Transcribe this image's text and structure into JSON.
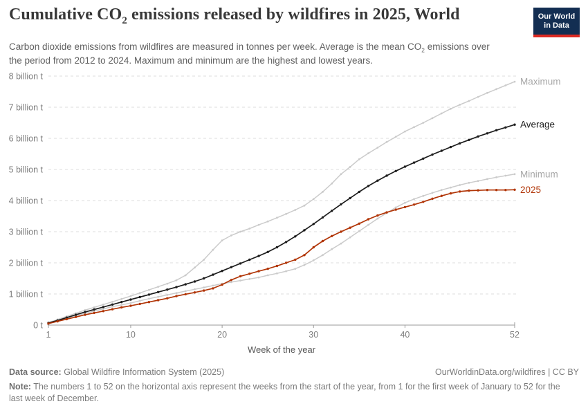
{
  "header": {
    "title_pre": "Cumulative CO",
    "title_sub": "2",
    "title_post": " emissions released by wildfires in 2025, World",
    "subtitle_pre": "Carbon dioxide emissions from wildfires are measured in tonnes per week. Average is the mean CO",
    "subtitle_sub": "2",
    "subtitle_post": " emissions over the period from 2012 to 2024. Maximum and minimum are the highest and lowest years.",
    "logo_line1": "Our World",
    "logo_line2": "in Data"
  },
  "colors": {
    "accent_red": "#b13507",
    "line_gray": "#cbcbcb",
    "series_label_gray": "#a7a7a7",
    "average_black": "#1d1d1d",
    "grid": "#dedede",
    "axis": "#9a9a9a",
    "tick_label": "#7d7d7d",
    "axis_title": "#565656",
    "logo_bg": "#132e52",
    "logo_stripe": "#dc2a23"
  },
  "chart_data": {
    "type": "line",
    "title": "Cumulative CO₂ emissions released by wildfires in 2025, World",
    "subtitle": "Carbon dioxide emissions from wildfires are measured in tonnes per week. Average is the mean CO₂ emissions over the period from 2012 to 2024. Maximum and minimum are the highest and lowest years.",
    "xlabel": "Week of the year",
    "ylabel": "",
    "unit": "billion tonnes",
    "xlim": [
      1,
      52
    ],
    "ylim": [
      0,
      8
    ],
    "grid": "dashed horizontal",
    "legend_position": "right-end-labels",
    "x_ticks": [
      1,
      10,
      20,
      30,
      40,
      52
    ],
    "y_tick_values": [
      0,
      1,
      2,
      3,
      4,
      5,
      6,
      7,
      8
    ],
    "y_tick_labels": [
      "0 t",
      "1 billion t",
      "2 billion t",
      "3 billion t",
      "4 billion t",
      "5 billion t",
      "6 billion t",
      "7 billion t",
      "8 billion t"
    ],
    "x": [
      1,
      2,
      3,
      4,
      5,
      6,
      7,
      8,
      9,
      10,
      11,
      12,
      13,
      14,
      15,
      16,
      17,
      18,
      19,
      20,
      21,
      22,
      23,
      24,
      25,
      26,
      27,
      28,
      29,
      30,
      31,
      32,
      33,
      34,
      35,
      36,
      37,
      38,
      39,
      40,
      41,
      42,
      43,
      44,
      45,
      46,
      47,
      48,
      49,
      50,
      51,
      52
    ],
    "series": [
      {
        "name": "Maximum",
        "color": "#cbcbcb",
        "label_color": "#a7a7a7",
        "line_width": 1.5,
        "values": [
          0.08,
          0.18,
          0.28,
          0.38,
          0.48,
          0.57,
          0.66,
          0.75,
          0.84,
          0.93,
          1.03,
          1.13,
          1.23,
          1.33,
          1.44,
          1.6,
          1.85,
          2.1,
          2.42,
          2.72,
          2.88,
          3.0,
          3.1,
          3.22,
          3.33,
          3.45,
          3.57,
          3.7,
          3.84,
          4.05,
          4.28,
          4.55,
          4.85,
          5.08,
          5.33,
          5.52,
          5.7,
          5.88,
          6.05,
          6.22,
          6.36,
          6.5,
          6.65,
          6.8,
          6.95,
          7.08,
          7.2,
          7.33,
          7.46,
          7.58,
          7.7,
          7.82
        ]
      },
      {
        "name": "Minimum",
        "color": "#cbcbcb",
        "label_color": "#a7a7a7",
        "line_width": 1.5,
        "values": [
          0.07,
          0.14,
          0.22,
          0.3,
          0.38,
          0.45,
          0.52,
          0.59,
          0.65,
          0.71,
          0.78,
          0.85,
          0.91,
          0.97,
          1.03,
          1.09,
          1.15,
          1.21,
          1.27,
          1.33,
          1.38,
          1.43,
          1.48,
          1.53,
          1.6,
          1.66,
          1.73,
          1.81,
          1.93,
          2.08,
          2.25,
          2.44,
          2.62,
          2.82,
          3.02,
          3.22,
          3.42,
          3.6,
          3.78,
          3.93,
          4.05,
          4.15,
          4.25,
          4.34,
          4.42,
          4.5,
          4.57,
          4.63,
          4.69,
          4.75,
          4.8,
          4.85
        ]
      },
      {
        "name": "Average",
        "color": "#1d1d1d",
        "label_color": "#1d1d1d",
        "line_width": 1.7,
        "values": [
          0.07,
          0.15,
          0.24,
          0.33,
          0.42,
          0.5,
          0.58,
          0.66,
          0.74,
          0.82,
          0.9,
          0.98,
          1.06,
          1.14,
          1.22,
          1.31,
          1.4,
          1.5,
          1.62,
          1.74,
          1.86,
          1.98,
          2.1,
          2.22,
          2.35,
          2.5,
          2.67,
          2.85,
          3.05,
          3.25,
          3.46,
          3.67,
          3.88,
          4.08,
          4.28,
          4.47,
          4.64,
          4.8,
          4.95,
          5.09,
          5.22,
          5.35,
          5.48,
          5.6,
          5.72,
          5.84,
          5.95,
          6.06,
          6.16,
          6.26,
          6.35,
          6.44
        ]
      },
      {
        "name": "2025",
        "color": "#b13507",
        "label_color": "#b13507",
        "line_width": 1.7,
        "values": [
          0.05,
          0.12,
          0.19,
          0.26,
          0.33,
          0.39,
          0.45,
          0.51,
          0.57,
          0.62,
          0.68,
          0.74,
          0.8,
          0.86,
          0.93,
          0.99,
          1.05,
          1.11,
          1.18,
          1.3,
          1.45,
          1.57,
          1.65,
          1.73,
          1.81,
          1.9,
          2.0,
          2.1,
          2.25,
          2.5,
          2.7,
          2.86,
          3.0,
          3.13,
          3.26,
          3.4,
          3.52,
          3.62,
          3.71,
          3.79,
          3.87,
          3.96,
          4.06,
          4.15,
          4.23,
          4.29,
          4.32,
          4.33,
          4.34,
          4.34,
          4.34,
          4.35
        ]
      }
    ]
  },
  "footer": {
    "datasource_label": "Data source:",
    "datasource_value": " Global Wildfire Information System (2025)",
    "link": "OurWorldinData.org/wildfires | CC BY",
    "note_label": "Note:",
    "note_value": " The numbers 1 to 52 on the horizontal axis represent the weeks from the start of the year, from 1 for the first week of January to 52 for the last week of December."
  }
}
